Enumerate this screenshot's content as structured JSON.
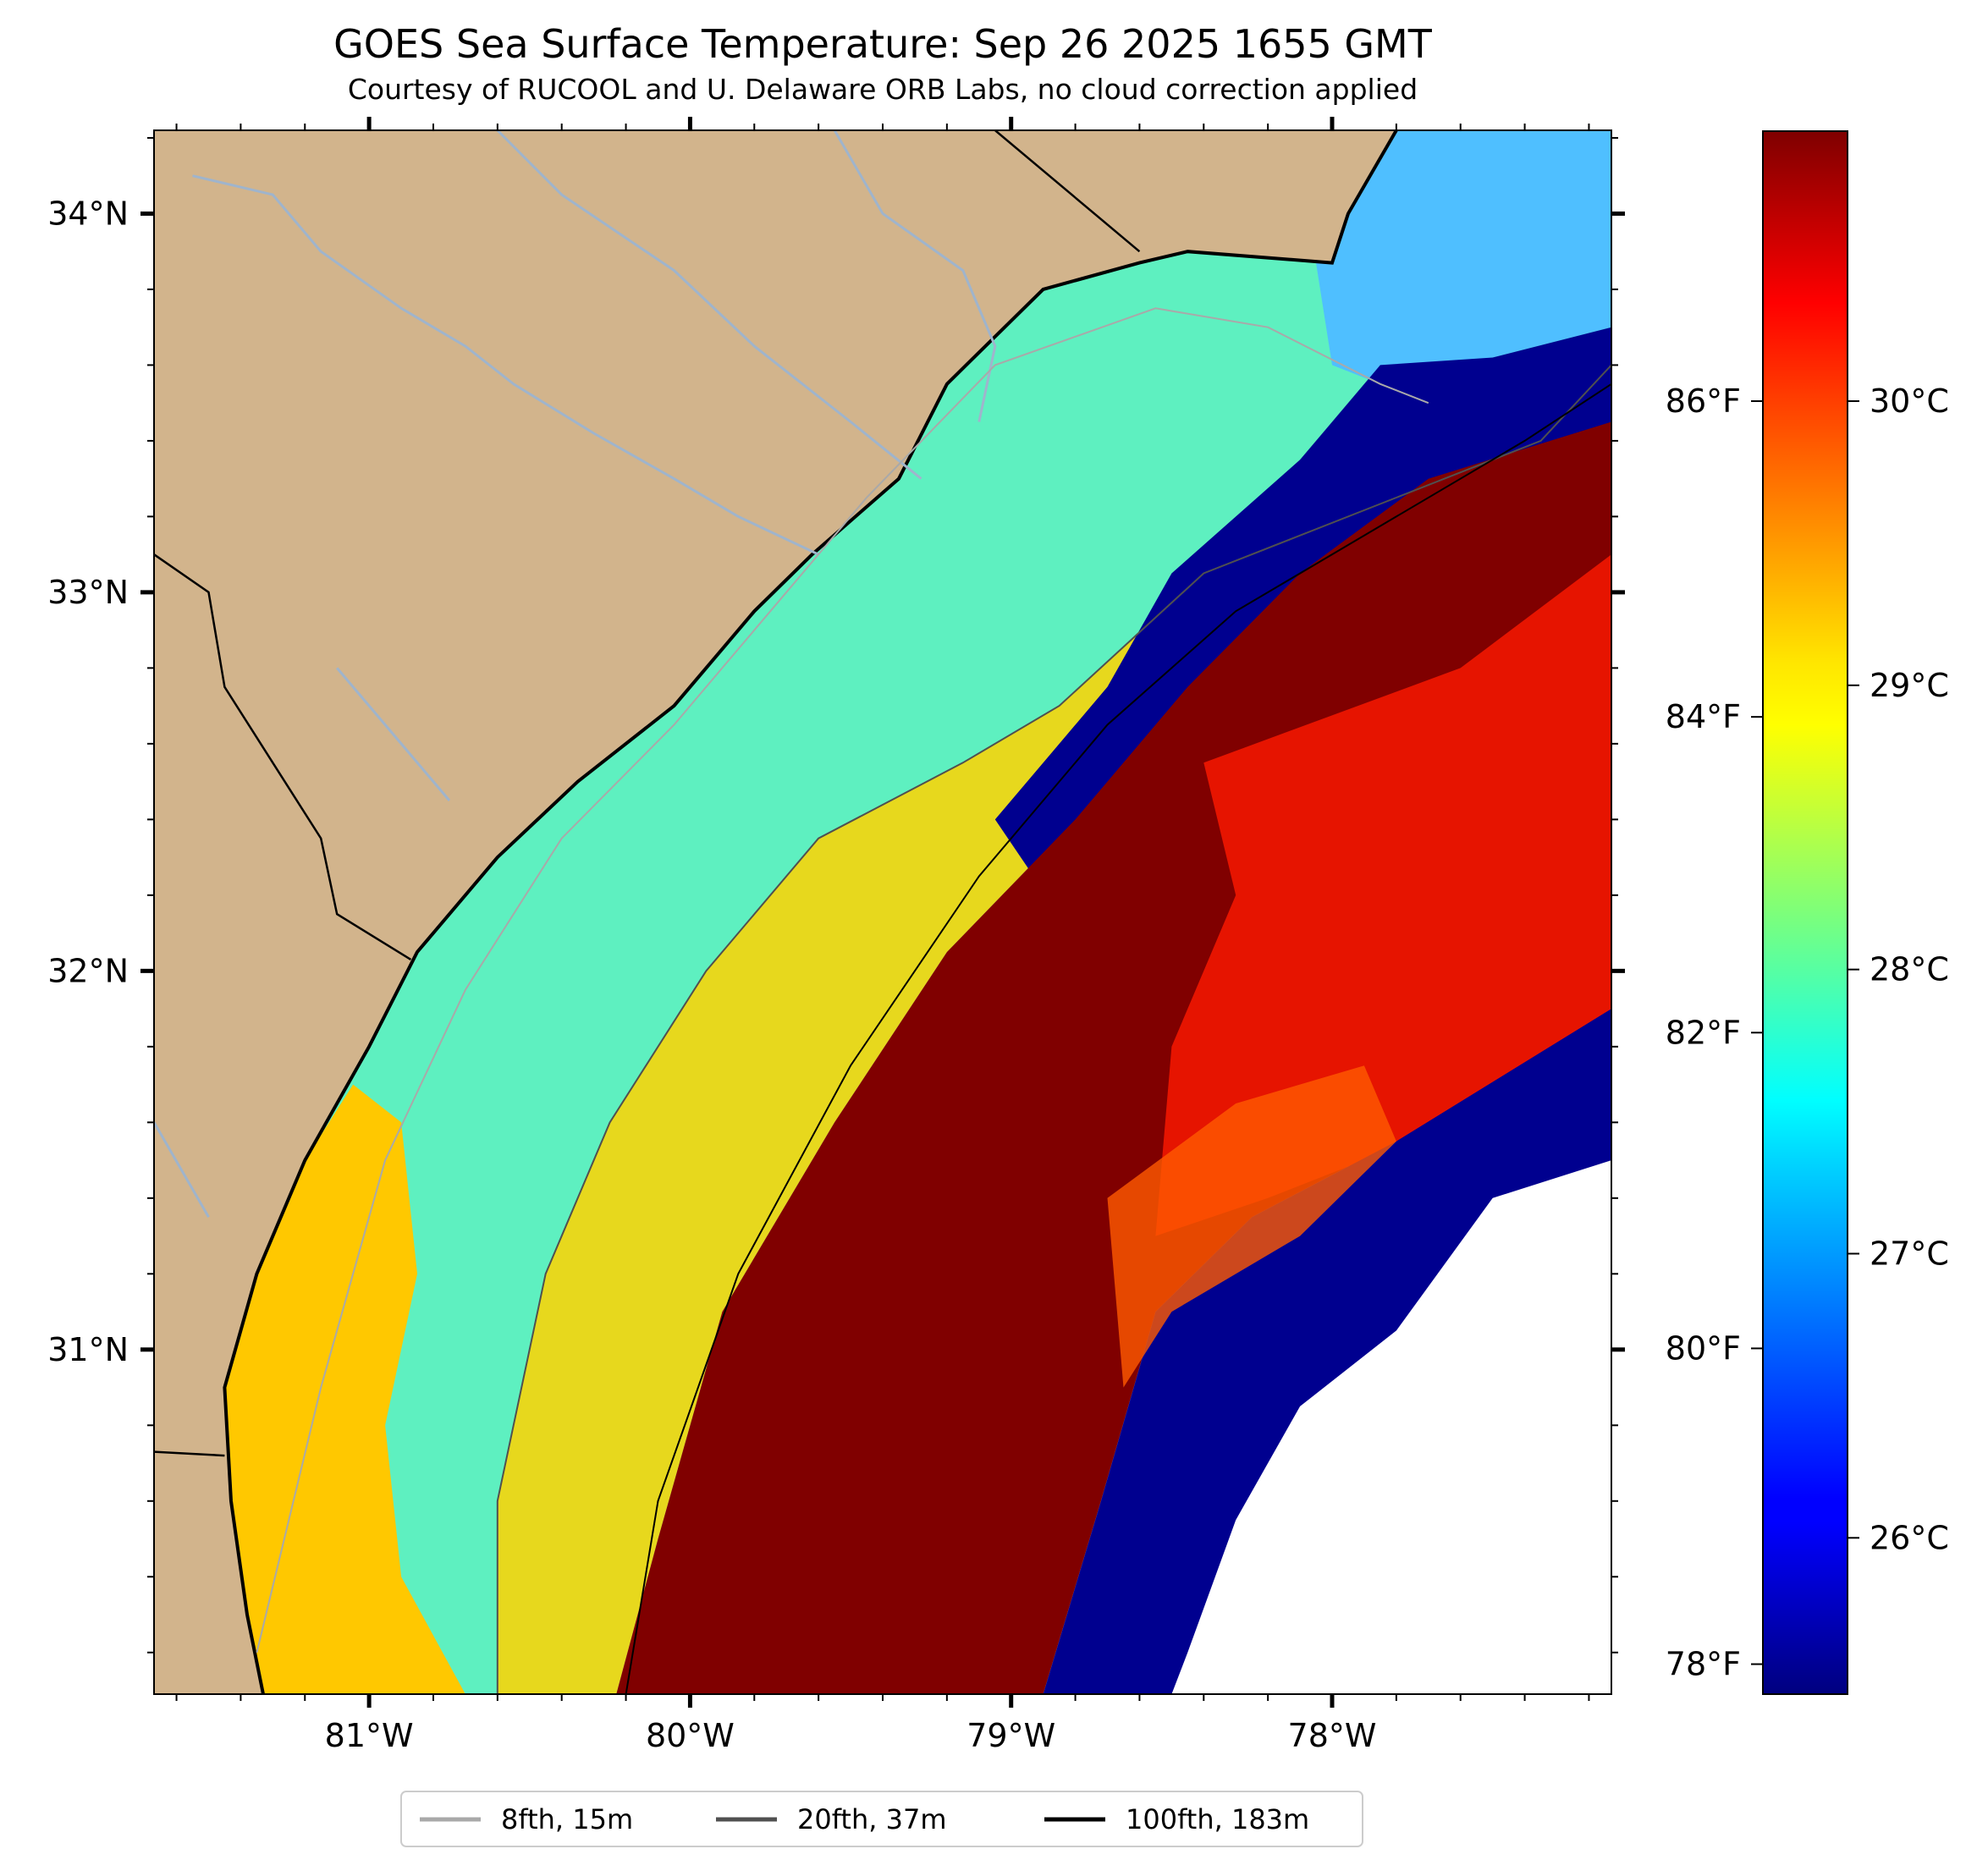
{
  "title": "GOES Sea Surface Temperature: Sep 26 2025 1655 GMT",
  "subtitle": "Courtesy of RUCOOL and U. Delaware ORB Labs, no cloud correction applied",
  "map": {
    "lon_range": [
      -81.67,
      -77.13
    ],
    "lat_range": [
      30.09,
      34.22
    ],
    "lat_ticks": [
      {
        "value": 34,
        "label": "34°N"
      },
      {
        "value": 33,
        "label": "33°N"
      },
      {
        "value": 32,
        "label": "32°N"
      },
      {
        "value": 31,
        "label": "31°N"
      }
    ],
    "lon_ticks": [
      {
        "value": -81,
        "label": "81°W"
      },
      {
        "value": -80,
        "label": "80°W"
      },
      {
        "value": -79,
        "label": "79°W"
      },
      {
        "value": -78,
        "label": "78°W"
      }
    ],
    "land_color": "#d2b48c",
    "river_color": "#9fb4cc",
    "coastline_color": "#000000",
    "colormap": "jet",
    "coast_points": [
      [
        -81.33,
        30.09
      ],
      [
        -81.38,
        30.3
      ],
      [
        -81.43,
        30.6
      ],
      [
        -81.45,
        30.9
      ],
      [
        -81.35,
        31.2
      ],
      [
        -81.2,
        31.5
      ],
      [
        -81.0,
        31.8
      ],
      [
        -80.85,
        32.05
      ],
      [
        -80.6,
        32.3
      ],
      [
        -80.35,
        32.5
      ],
      [
        -80.05,
        32.7
      ],
      [
        -79.8,
        32.95
      ],
      [
        -79.62,
        33.1
      ],
      [
        -79.35,
        33.3
      ],
      [
        -79.2,
        33.55
      ],
      [
        -78.9,
        33.8
      ],
      [
        -78.6,
        33.87
      ],
      [
        -78.45,
        33.9
      ],
      [
        -78.0,
        33.87
      ],
      [
        -77.95,
        34.0
      ],
      [
        -77.8,
        34.22
      ]
    ],
    "gulf_stream_west_edge": [
      [
        -80.23,
        30.09
      ],
      [
        -80.1,
        30.5
      ],
      [
        -79.9,
        31.1
      ],
      [
        -79.55,
        31.6
      ],
      [
        -79.2,
        32.05
      ],
      [
        -78.8,
        32.4
      ],
      [
        -78.45,
        32.75
      ],
      [
        -78.1,
        33.05
      ],
      [
        -77.7,
        33.3
      ],
      [
        -77.13,
        33.45
      ]
    ],
    "gulf_stream_east_edge": [
      [
        -78.9,
        30.09
      ],
      [
        -78.72,
        30.6
      ],
      [
        -78.55,
        31.1
      ],
      [
        -78.25,
        31.35
      ],
      [
        -77.8,
        31.55
      ],
      [
        -77.13,
        31.9
      ]
    ],
    "isobath_8fth": [
      [
        -81.35,
        30.2
      ],
      [
        -81.15,
        30.9
      ],
      [
        -80.95,
        31.5
      ],
      [
        -80.7,
        31.95
      ],
      [
        -80.4,
        32.35
      ],
      [
        -80.05,
        32.65
      ],
      [
        -79.75,
        32.95
      ],
      [
        -79.45,
        33.25
      ],
      [
        -79.05,
        33.6
      ],
      [
        -78.55,
        33.75
      ],
      [
        -78.2,
        33.7
      ],
      [
        -77.85,
        33.55
      ],
      [
        -77.7,
        33.5
      ]
    ],
    "isobath_20fth": [
      [
        -80.6,
        30.09
      ],
      [
        -80.6,
        30.6
      ],
      [
        -80.45,
        31.2
      ],
      [
        -80.25,
        31.6
      ],
      [
        -79.95,
        32.0
      ],
      [
        -79.6,
        32.35
      ],
      [
        -79.15,
        32.55
      ],
      [
        -78.85,
        32.7
      ],
      [
        -78.4,
        33.05
      ],
      [
        -77.8,
        33.25
      ],
      [
        -77.35,
        33.4
      ],
      [
        -77.13,
        33.6
      ]
    ],
    "isobath_100fth": [
      [
        -80.2,
        30.09
      ],
      [
        -80.1,
        30.6
      ],
      [
        -79.85,
        31.2
      ],
      [
        -79.5,
        31.75
      ],
      [
        -79.1,
        32.25
      ],
      [
        -78.7,
        32.65
      ],
      [
        -78.3,
        32.95
      ],
      [
        -77.8,
        33.2
      ],
      [
        -77.4,
        33.4
      ],
      [
        -77.13,
        33.55
      ]
    ],
    "state_border_nc_sc": [
      [
        -79.05,
        34.22
      ],
      [
        -78.6,
        33.9
      ]
    ],
    "state_border_sc_ga": [
      [
        -81.67,
        33.1
      ],
      [
        -81.5,
        33.0
      ],
      [
        -81.45,
        32.75
      ],
      [
        -81.3,
        32.55
      ],
      [
        -81.15,
        32.35
      ],
      [
        -81.1,
        32.15
      ],
      [
        -80.87,
        32.03
      ]
    ],
    "state_border_ga_fl": [
      [
        -81.67,
        30.73
      ],
      [
        -81.45,
        30.72
      ]
    ],
    "rivers": [
      [
        [
          -81.55,
          34.1
        ],
        [
          -81.3,
          34.05
        ],
        [
          -81.15,
          33.9
        ],
        [
          -80.9,
          33.75
        ],
        [
          -80.7,
          33.65
        ],
        [
          -80.55,
          33.55
        ],
        [
          -80.3,
          33.42
        ],
        [
          -80.05,
          33.3
        ],
        [
          -79.85,
          33.2
        ],
        [
          -79.6,
          33.1
        ]
      ],
      [
        [
          -80.6,
          34.22
        ],
        [
          -80.4,
          34.05
        ],
        [
          -80.05,
          33.85
        ],
        [
          -79.8,
          33.65
        ],
        [
          -79.5,
          33.45
        ],
        [
          -79.28,
          33.3
        ]
      ],
      [
        [
          -79.55,
          34.22
        ],
        [
          -79.4,
          34.0
        ],
        [
          -79.15,
          33.85
        ],
        [
          -79.05,
          33.65
        ],
        [
          -79.1,
          33.45
        ]
      ],
      [
        [
          -81.1,
          32.8
        ],
        [
          -80.9,
          32.6
        ],
        [
          -80.75,
          32.45
        ]
      ],
      [
        [
          -81.67,
          31.6
        ],
        [
          -81.5,
          31.35
        ]
      ]
    ]
  },
  "colorbar": {
    "celsius_ticks": [
      {
        "value": 30,
        "label": "30°C"
      },
      {
        "value": 29,
        "label": "29°C"
      },
      {
        "value": 28,
        "label": "28°C"
      },
      {
        "value": 27,
        "label": "27°C"
      },
      {
        "value": 26,
        "label": "26°C"
      }
    ],
    "fahrenheit_ticks": [
      {
        "value": 86,
        "label": "86°F"
      },
      {
        "value": 84,
        "label": "84°F"
      },
      {
        "value": 82,
        "label": "82°F"
      },
      {
        "value": 80,
        "label": "80°F"
      },
      {
        "value": 78,
        "label": "78°F"
      }
    ],
    "range_c": [
      25.45,
      30.95
    ]
  },
  "legend": {
    "items": [
      {
        "label": "8fth, 15m",
        "color": "#a9a9a9"
      },
      {
        "label": "20fth, 37m",
        "color": "#505050"
      },
      {
        "label": "100fth, 183m",
        "color": "#000000"
      }
    ]
  }
}
